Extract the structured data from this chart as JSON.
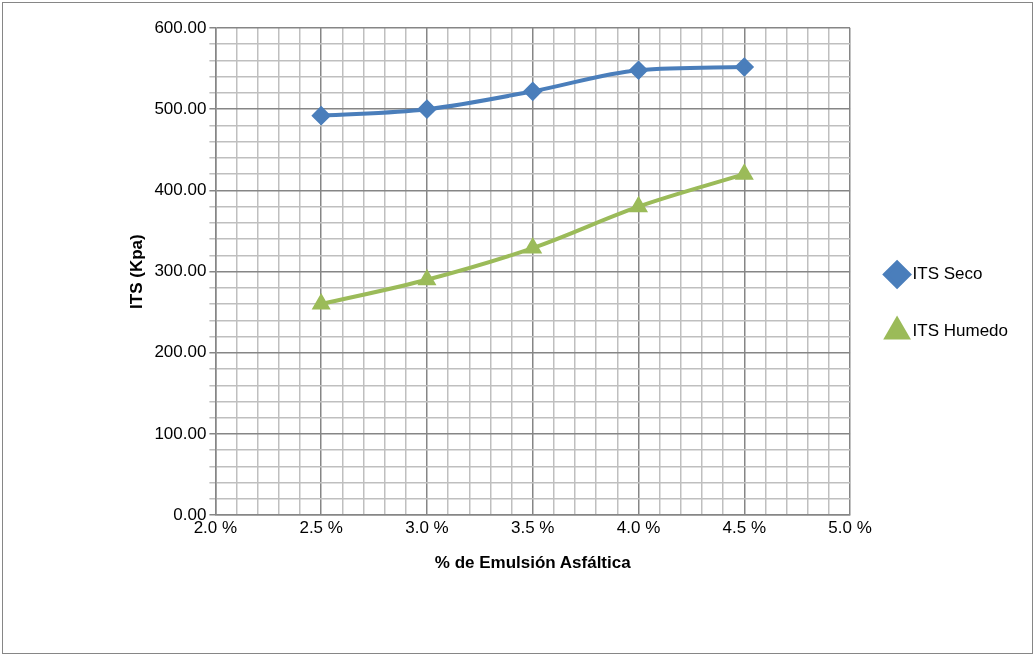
{
  "chart_data": {
    "type": "line",
    "xlabel": "% de Emulsión Asfáltica",
    "ylabel": "ITS (Kpa)",
    "x": [
      2.5,
      3.0,
      3.5,
      4.0,
      4.5
    ],
    "series": [
      {
        "name": "ITS Seco",
        "color": "#4a7ebb",
        "marker": "diamond",
        "values": [
          492,
          500,
          522,
          548,
          552
        ]
      },
      {
        "name": "ITS Humedo",
        "color": "#9bbb59",
        "marker": "triangle",
        "values": [
          260,
          290,
          329,
          380,
          420
        ]
      }
    ],
    "xlim": [
      2.0,
      5.0
    ],
    "xticks": [
      {
        "value": 2.0,
        "label": "2.0 %"
      },
      {
        "value": 2.1,
        "label": null
      },
      {
        "value": 2.2,
        "label": null
      },
      {
        "value": 2.3,
        "label": null
      },
      {
        "value": 2.4,
        "label": null
      },
      {
        "value": 2.5,
        "label": "2.5 %"
      },
      {
        "value": 2.6,
        "label": null
      },
      {
        "value": 2.7,
        "label": null
      },
      {
        "value": 2.8,
        "label": null
      },
      {
        "value": 2.9,
        "label": null
      },
      {
        "value": 3.0,
        "label": "3.0 %"
      },
      {
        "value": 3.1,
        "label": null
      },
      {
        "value": 3.2,
        "label": null
      },
      {
        "value": 3.3,
        "label": null
      },
      {
        "value": 3.4,
        "label": null
      },
      {
        "value": 3.5,
        "label": "3.5 %"
      },
      {
        "value": 3.6,
        "label": null
      },
      {
        "value": 3.7,
        "label": null
      },
      {
        "value": 3.8,
        "label": null
      },
      {
        "value": 3.9,
        "label": null
      },
      {
        "value": 4.0,
        "label": "4.0 %"
      },
      {
        "value": 4.1,
        "label": null
      },
      {
        "value": 4.2,
        "label": null
      },
      {
        "value": 4.3,
        "label": null
      },
      {
        "value": 4.4,
        "label": null
      },
      {
        "value": 4.5,
        "label": "4.5 %"
      },
      {
        "value": 4.6,
        "label": null
      },
      {
        "value": 4.7,
        "label": null
      },
      {
        "value": 4.8,
        "label": null
      },
      {
        "value": 4.9,
        "label": null
      },
      {
        "value": 5.0,
        "label": "5.0 %"
      }
    ],
    "ylim": [
      0,
      600
    ],
    "yticks": [
      {
        "value": 0,
        "label": "0.00"
      },
      {
        "value": 20,
        "label": null
      },
      {
        "value": 40,
        "label": null
      },
      {
        "value": 60,
        "label": null
      },
      {
        "value": 80,
        "label": null
      },
      {
        "value": 100,
        "label": "100.00"
      },
      {
        "value": 120,
        "label": null
      },
      {
        "value": 140,
        "label": null
      },
      {
        "value": 160,
        "label": null
      },
      {
        "value": 180,
        "label": null
      },
      {
        "value": 200,
        "label": "200.00"
      },
      {
        "value": 220,
        "label": null
      },
      {
        "value": 240,
        "label": null
      },
      {
        "value": 260,
        "label": null
      },
      {
        "value": 280,
        "label": null
      },
      {
        "value": 300,
        "label": "300.00"
      },
      {
        "value": 320,
        "label": null
      },
      {
        "value": 340,
        "label": null
      },
      {
        "value": 360,
        "label": null
      },
      {
        "value": 380,
        "label": null
      },
      {
        "value": 400,
        "label": "400.00"
      },
      {
        "value": 420,
        "label": null
      },
      {
        "value": 440,
        "label": null
      },
      {
        "value": 460,
        "label": null
      },
      {
        "value": 480,
        "label": null
      },
      {
        "value": 500,
        "label": "500.00"
      },
      {
        "value": 520,
        "label": null
      },
      {
        "value": 540,
        "label": null
      },
      {
        "value": 560,
        "label": null
      },
      {
        "value": 580,
        "label": null
      },
      {
        "value": 600,
        "label": "600.00"
      }
    ],
    "grid": true,
    "legend": "right",
    "line_style": "solid"
  }
}
